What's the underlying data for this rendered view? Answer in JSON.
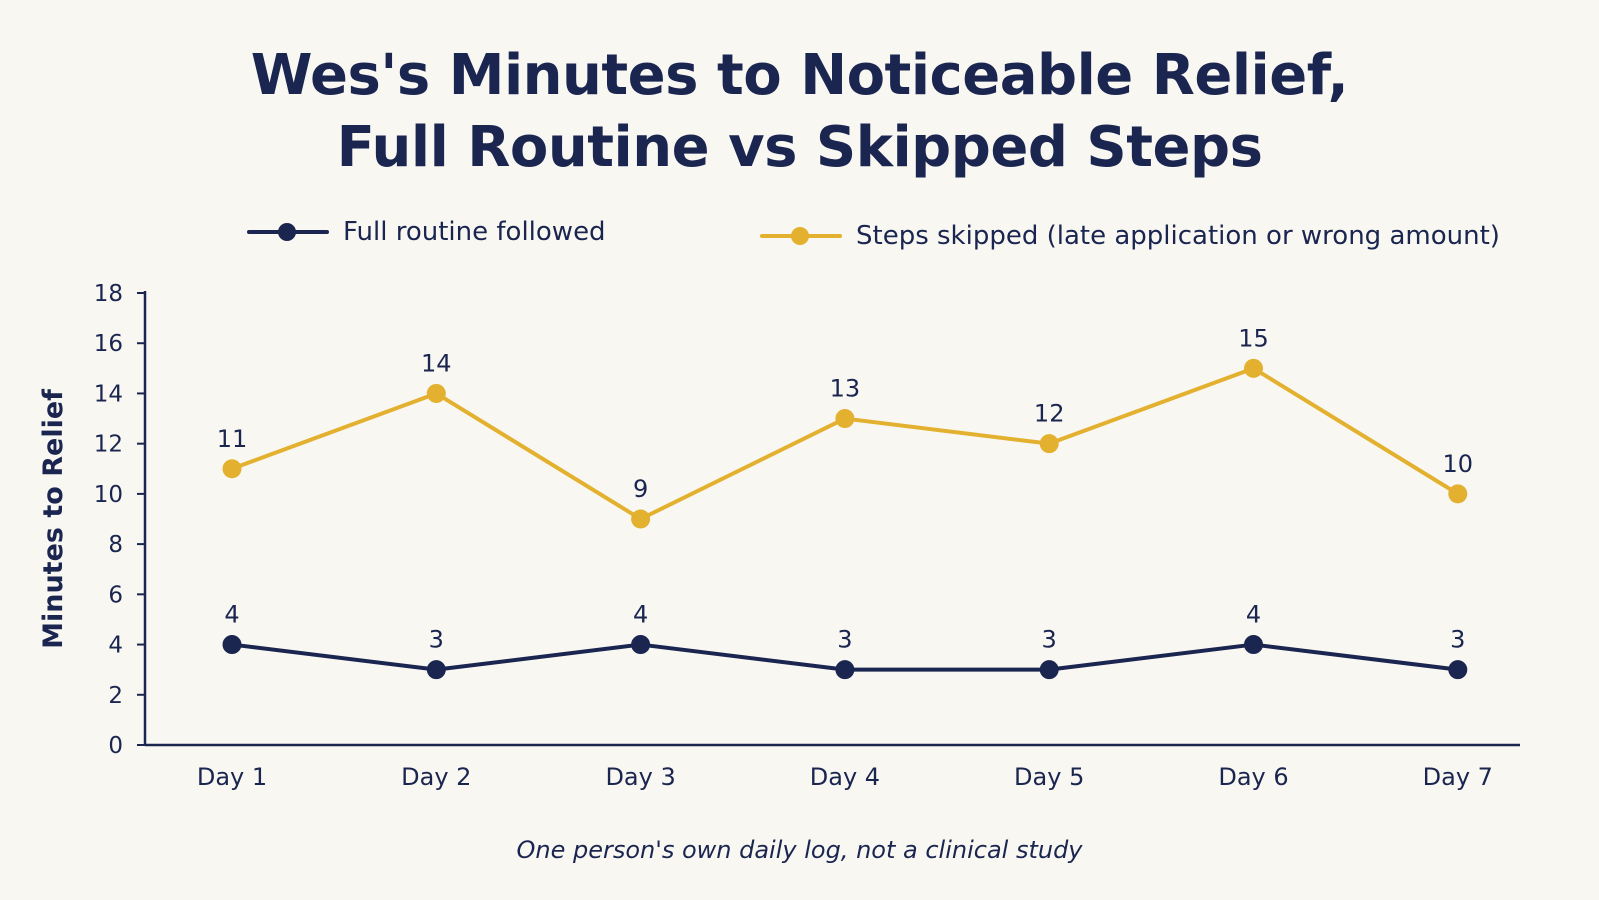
{
  "chart_data": {
    "type": "line",
    "title": [
      "Wes's Minutes to Noticeable Relief,",
      "Full Routine vs Skipped Steps"
    ],
    "xlabel": "",
    "ylabel": "Minutes to Relief",
    "categories": [
      "Day 1",
      "Day 2",
      "Day 3",
      "Day 4",
      "Day 5",
      "Day 6",
      "Day 7"
    ],
    "ylim": [
      0,
      18
    ],
    "yticks": [
      0,
      2,
      4,
      6,
      8,
      10,
      12,
      14,
      16,
      18
    ],
    "grid": false,
    "legend_position": "top",
    "data_labels": true,
    "series": [
      {
        "name": "Full routine followed",
        "values": [
          4,
          3,
          4,
          3,
          3,
          4,
          3
        ],
        "color": "#1a2550"
      },
      {
        "name": "Steps skipped (late application or wrong amount)",
        "values": [
          11,
          14,
          9,
          13,
          12,
          15,
          10
        ],
        "color": "#e3b12f"
      }
    ],
    "note": "One person's own daily log, not a clinical study"
  },
  "colors": {
    "background": "#f9f7f2",
    "text": "#1a2550",
    "axis": "#1a2550"
  }
}
